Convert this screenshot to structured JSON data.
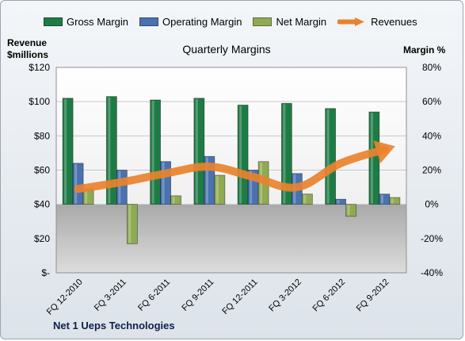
{
  "chart_data": {
    "type": "bar",
    "title": "Quarterly Margins",
    "categories": [
      "FQ 12-2010",
      "FQ 3-2011",
      "FQ 6-2011",
      "FQ 9-2011",
      "FQ 12-2011",
      "FQ 3-2012",
      "FQ 6-2012",
      "FQ 9-2012"
    ],
    "series": [
      {
        "name": "Gross Margin",
        "kind": "bar",
        "axis": "right",
        "color": "#1e7b45",
        "values": [
          62,
          63,
          61,
          62,
          58,
          59,
          56,
          54
        ]
      },
      {
        "name": "Operating Margin",
        "kind": "bar",
        "axis": "right",
        "color": "#4a72b0",
        "values": [
          24,
          20,
          25,
          28,
          20,
          18,
          3,
          6
        ]
      },
      {
        "name": "Net Margin",
        "kind": "bar",
        "axis": "right",
        "color": "#8faa52",
        "values": [
          9,
          -23,
          5,
          17,
          25,
          6,
          -7,
          4
        ]
      },
      {
        "name": "Revenues",
        "kind": "line",
        "axis": "left",
        "color": "#e9822e",
        "values": [
          49,
          53,
          58,
          62,
          56,
          50,
          64,
          72
        ]
      }
    ],
    "y_left": {
      "label": "Revenue $millions",
      "label_lines": [
        "Revenue",
        "$millions"
      ],
      "min": 0,
      "max": 120,
      "step": 20,
      "ticks": [
        "$-",
        "$20",
        "$40",
        "$60",
        "$80",
        "$100",
        "$120"
      ]
    },
    "y_right": {
      "label": "Margin %",
      "min": -40,
      "max": 80,
      "step": 20,
      "ticks": [
        "-40%",
        "-20%",
        "0%",
        "20%",
        "40%",
        "60%",
        "80%"
      ]
    },
    "grid": true,
    "legend_position": "top"
  },
  "footer": {
    "company": "Net 1 Ueps Technologies"
  }
}
